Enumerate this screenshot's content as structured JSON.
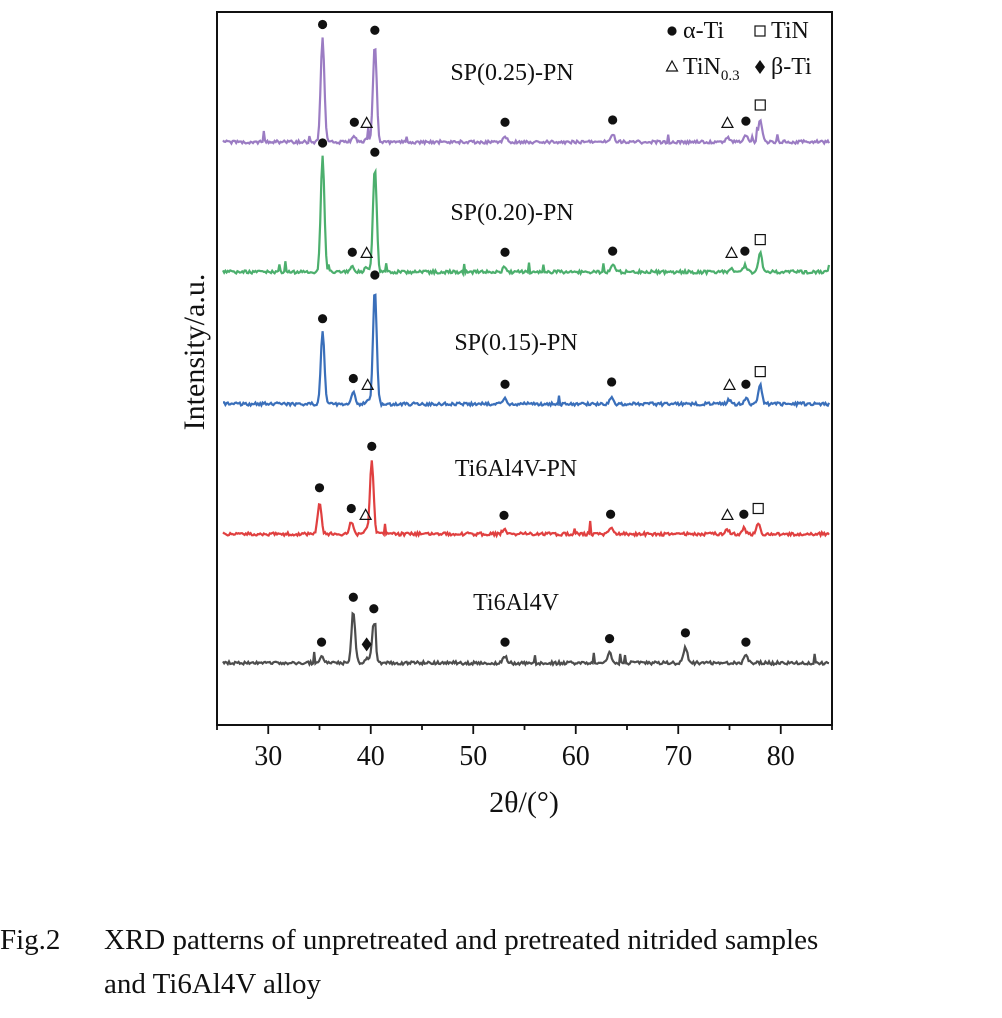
{
  "chart_data": {
    "type": "line",
    "xlabel": "2θ/(°)",
    "ylabel": "Intensity/a.u.",
    "xlim": [
      25,
      85
    ],
    "xticks": [
      30,
      40,
      50,
      60,
      70,
      80
    ],
    "grid": false,
    "legend_position": "top-right",
    "legend": [
      {
        "marker": "circle",
        "label": "α-Ti"
      },
      {
        "marker": "square",
        "label": "TiN"
      },
      {
        "marker": "triangle",
        "label": "TiN0.3"
      },
      {
        "marker": "diamond",
        "label": "β-Ti"
      }
    ],
    "series": [
      {
        "name": "SP(0.25)-PN",
        "color": "#9b7cc3",
        "peaks": [
          {
            "x": 35.3,
            "h": 0.9,
            "phase": "circle"
          },
          {
            "x": 38.4,
            "h": 0.05,
            "phase": "circle"
          },
          {
            "x": 39.6,
            "h": 0.04,
            "phase": "triangle"
          },
          {
            "x": 40.4,
            "h": 0.85,
            "phase": "circle"
          },
          {
            "x": 53.1,
            "h": 0.05,
            "phase": "circle"
          },
          {
            "x": 63.6,
            "h": 0.07,
            "phase": "circle"
          },
          {
            "x": 74.8,
            "h": 0.04,
            "phase": "triangle"
          },
          {
            "x": 76.6,
            "h": 0.06,
            "phase": "circle"
          },
          {
            "x": 78.0,
            "h": 0.2,
            "phase": "square"
          }
        ]
      },
      {
        "name": "SP(0.20)-PN",
        "color": "#4caf6d",
        "peaks": [
          {
            "x": 35.3,
            "h": 1.0,
            "phase": "circle"
          },
          {
            "x": 38.2,
            "h": 0.05,
            "phase": "circle"
          },
          {
            "x": 39.6,
            "h": 0.04,
            "phase": "triangle"
          },
          {
            "x": 40.4,
            "h": 0.92,
            "phase": "circle"
          },
          {
            "x": 53.1,
            "h": 0.05,
            "phase": "circle"
          },
          {
            "x": 63.6,
            "h": 0.06,
            "phase": "circle"
          },
          {
            "x": 75.2,
            "h": 0.04,
            "phase": "triangle"
          },
          {
            "x": 76.5,
            "h": 0.06,
            "phase": "circle"
          },
          {
            "x": 78.0,
            "h": 0.16,
            "phase": "square"
          }
        ]
      },
      {
        "name": "SP(0.15)-PN",
        "color": "#3a6fba",
        "peaks": [
          {
            "x": 35.3,
            "h": 0.62,
            "phase": "circle"
          },
          {
            "x": 38.3,
            "h": 0.1,
            "phase": "circle"
          },
          {
            "x": 39.7,
            "h": 0.04,
            "phase": "triangle"
          },
          {
            "x": 40.4,
            "h": 1.0,
            "phase": "circle"
          },
          {
            "x": 53.1,
            "h": 0.05,
            "phase": "circle"
          },
          {
            "x": 63.5,
            "h": 0.07,
            "phase": "circle"
          },
          {
            "x": 75.0,
            "h": 0.04,
            "phase": "triangle"
          },
          {
            "x": 76.6,
            "h": 0.05,
            "phase": "circle"
          },
          {
            "x": 78.0,
            "h": 0.16,
            "phase": "square"
          }
        ]
      },
      {
        "name": "Ti6Al4V-PN",
        "color": "#e04040",
        "peaks": [
          {
            "x": 35.0,
            "h": 0.28,
            "phase": "circle"
          },
          {
            "x": 38.1,
            "h": 0.1,
            "phase": "circle"
          },
          {
            "x": 39.5,
            "h": 0.04,
            "phase": "triangle"
          },
          {
            "x": 40.1,
            "h": 0.64,
            "phase": "circle"
          },
          {
            "x": 53.0,
            "h": 0.04,
            "phase": "circle"
          },
          {
            "x": 63.4,
            "h": 0.05,
            "phase": "circle"
          },
          {
            "x": 74.8,
            "h": 0.04,
            "phase": "triangle"
          },
          {
            "x": 76.4,
            "h": 0.05,
            "phase": "circle"
          },
          {
            "x": 77.8,
            "h": 0.1,
            "phase": "square"
          }
        ]
      },
      {
        "name": "Ti6Al4V",
        "color": "#4d4d4d",
        "peaks": [
          {
            "x": 35.2,
            "h": 0.06,
            "phase": "circle"
          },
          {
            "x": 38.3,
            "h": 0.45,
            "phase": "circle"
          },
          {
            "x": 39.6,
            "h": 0.04,
            "phase": "diamond"
          },
          {
            "x": 40.3,
            "h": 0.35,
            "phase": "circle"
          },
          {
            "x": 53.1,
            "h": 0.06,
            "phase": "circle"
          },
          {
            "x": 63.3,
            "h": 0.09,
            "phase": "circle"
          },
          {
            "x": 70.7,
            "h": 0.14,
            "phase": "circle"
          },
          {
            "x": 76.6,
            "h": 0.06,
            "phase": "circle"
          }
        ]
      }
    ]
  },
  "caption": {
    "number": "Fig.2",
    "line1": "XRD patterns of unpretreated and pretreated nitrided samples",
    "line2": "and Ti6Al4V alloy"
  }
}
